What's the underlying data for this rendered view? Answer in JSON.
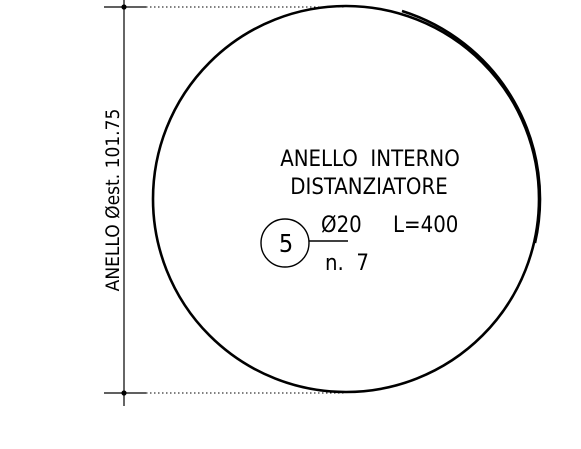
{
  "drawing": {
    "dimension_label": "ANELLO Øest. 101.75",
    "title_line1": "ANELLO  INTERNO",
    "title_line2": "DISTANZIATORE",
    "bar_mark": "5",
    "bar_diameter": "Ø20",
    "bar_length": "L=400",
    "bar_count": "n.  7",
    "colors": {
      "line": "#000000",
      "background": "#ffffff"
    }
  }
}
